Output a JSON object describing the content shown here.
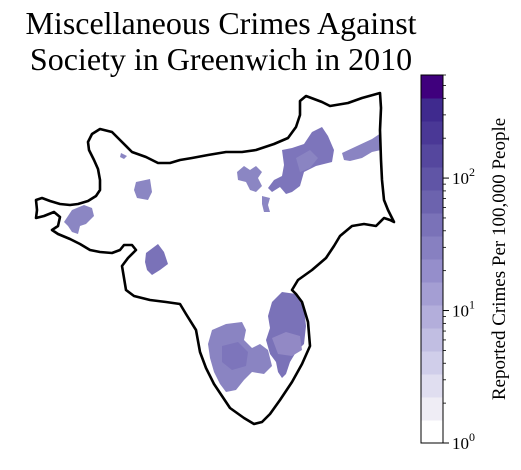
{
  "title": {
    "line1": "Miscellaneous Crimes Against",
    "line2": "Society in Greenwich in 2010"
  },
  "map": {
    "region": "Greenwich",
    "boundary_color": "#000000",
    "fill_color": "#7b72b8"
  },
  "colorbar": {
    "label": "Reported Crimes Per 100,000 People",
    "scale": "log",
    "range": [
      1,
      600
    ],
    "ticks": [
      {
        "value": 1,
        "base": "10",
        "exp": "0"
      },
      {
        "value": 10,
        "base": "10",
        "exp": "1"
      },
      {
        "value": 100,
        "base": "10",
        "exp": "2"
      }
    ],
    "colors": [
      "#ffffff",
      "#efedf5",
      "#e0def0",
      "#d0ceea",
      "#c1bee2",
      "#b3aedb",
      "#a49ed3",
      "#958ecb",
      "#8780c1",
      "#7a72b8",
      "#6c63ae",
      "#6055a6",
      "#55479e",
      "#4a3896",
      "#3f2a8e",
      "#3f007d"
    ]
  }
}
